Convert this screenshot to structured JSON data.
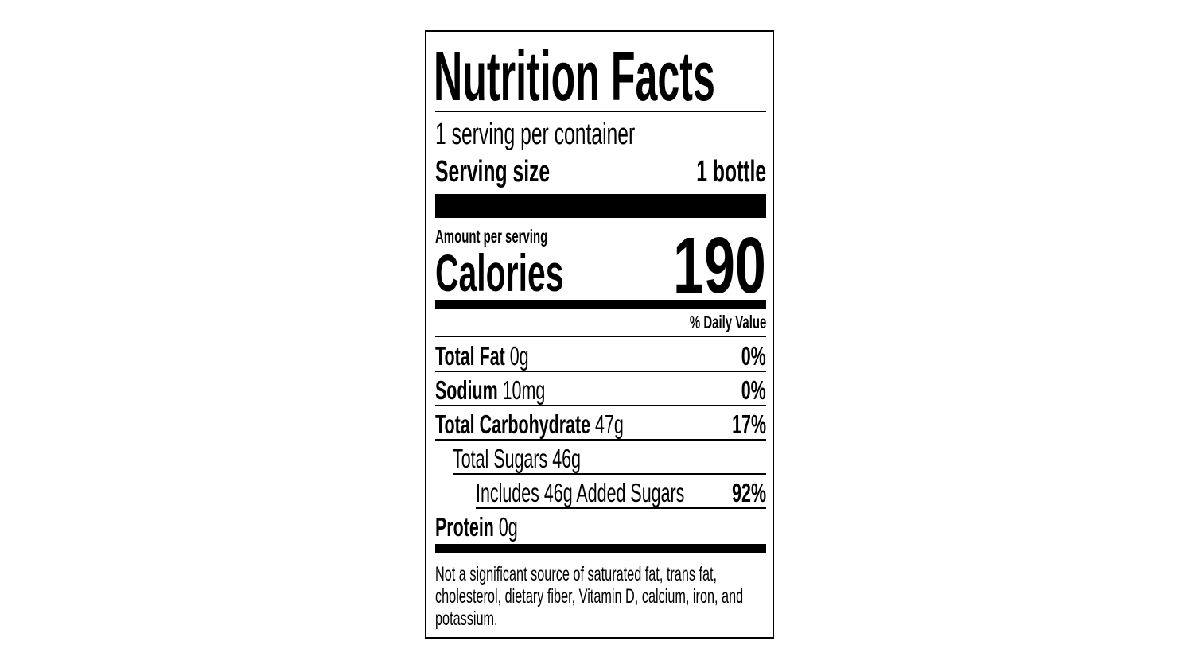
{
  "title": "Nutrition Facts",
  "servings_per_container": "1 serving per container",
  "serving_size_label": "Serving size",
  "serving_size_value": "1 bottle",
  "amount_per_serving": "Amount per serving",
  "calories_label": "Calories",
  "calories_value": "190",
  "daily_value_header": "% Daily Value",
  "nutrients": [
    {
      "name": "Total Fat",
      "amount": "0g",
      "dv": "0%"
    },
    {
      "name": "Sodium",
      "amount": "10mg",
      "dv": "0%"
    },
    {
      "name": "Total Carbohydrate",
      "amount": "47g",
      "dv": "17%"
    },
    {
      "name": "Total Sugars 46g",
      "amount": "",
      "dv": ""
    },
    {
      "name": "Includes 46g Added Sugars",
      "amount": "",
      "dv": "92%"
    },
    {
      "name": "Protein",
      "amount": "0g",
      "dv": ""
    }
  ],
  "footnote": "Not a significant source of saturated fat, trans fat, cholesterol, dietary fiber, Vitamin D, calcium, iron, and potassium."
}
